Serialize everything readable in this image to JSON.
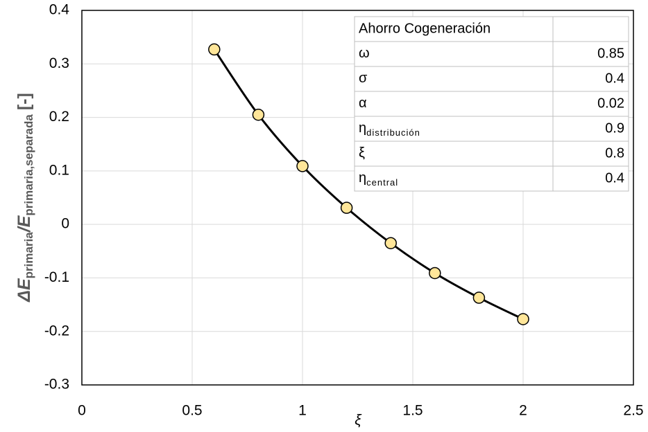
{
  "chart_data": {
    "type": "line",
    "x": [
      0.6,
      0.8,
      1.0,
      1.2,
      1.4,
      1.6,
      1.8,
      2.0
    ],
    "series": [
      {
        "color": "#000000",
        "marker_color": "#ffe699",
        "values": [
          0.327,
          0.205,
          0.109,
          0.031,
          -0.035,
          -0.091,
          -0.137,
          -0.177
        ]
      }
    ],
    "xlim": [
      0,
      2.5
    ],
    "xticks": [
      0,
      0.5,
      1,
      1.5,
      2,
      2.5
    ],
    "ylim": [
      -0.3,
      0.4
    ],
    "yticks": [
      0.4,
      0.3,
      0.2,
      0.1,
      0,
      -0.1,
      -0.2,
      -0.3
    ],
    "grid": true,
    "xlabel": "ξ",
    "ylabel": [
      "ΔE",
      "primaria",
      "/E",
      "primaria,separada",
      "[-]"
    ],
    "table": {
      "title": "Ahorro Cogeneración",
      "rows": [
        {
          "symbol": "ω",
          "value": 0.85
        },
        {
          "symbol": "σ",
          "value": 0.4
        },
        {
          "symbol": "α",
          "value": 0.02
        },
        {
          "symbol": "η",
          "sub": "distribución",
          "value": 0.9
        },
        {
          "symbol": "ξ",
          "value": 0.8
        },
        {
          "symbol": "η",
          "sub": "central",
          "value": 0.4
        }
      ]
    }
  }
}
